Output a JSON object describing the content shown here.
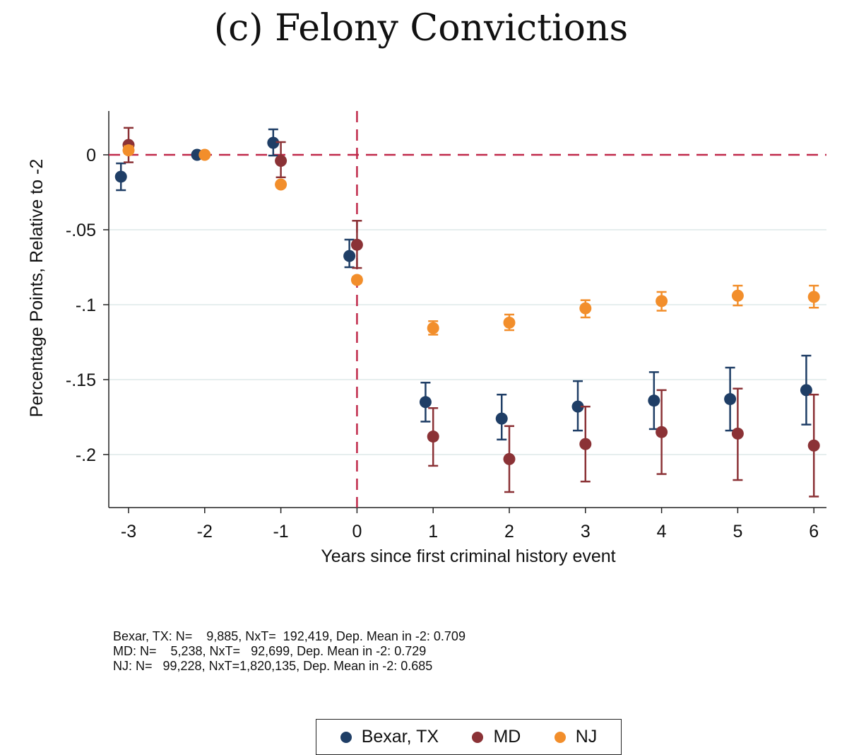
{
  "chart_data": {
    "type": "scatter",
    "title": "(c) Felony Convictions",
    "xlabel": "Years since first criminal history event",
    "ylabel": "Percentage Points, Relative to -2",
    "x": [
      -3,
      -2,
      -1,
      0,
      1,
      2,
      3,
      4,
      5,
      6
    ],
    "xticks": [
      "-3",
      "-2",
      "-1",
      "0",
      "1",
      "2",
      "3",
      "4",
      "5",
      "6"
    ],
    "yticks": [
      0,
      -0.05,
      -0.1,
      -0.15,
      -0.2
    ],
    "ytick_labels": [
      "0",
      "-.05",
      "-.1",
      "-.15",
      "-.2"
    ],
    "xlim": [
      -3.25,
      6.05
    ],
    "ylim": [
      -0.235,
      0.029
    ],
    "grid": "horizontal",
    "reference_lines": {
      "x": 0,
      "y": 0,
      "color": "#c0294a",
      "style": "dashed"
    },
    "legend_position": "bottom",
    "series": [
      {
        "name": "Bexar, TX",
        "color": "#1f3e66",
        "offset": -0.1,
        "values": [
          -0.0146,
          0,
          0.008,
          -0.0675,
          -0.165,
          -0.176,
          -0.168,
          -0.164,
          -0.163,
          -0.157
        ],
        "ci_low": [
          -0.0236,
          0,
          -0.0005,
          -0.075,
          -0.178,
          -0.19,
          -0.184,
          -0.183,
          -0.184,
          -0.18
        ],
        "ci_high": [
          -0.0057,
          0,
          0.017,
          -0.0566,
          -0.152,
          -0.16,
          -0.151,
          -0.145,
          -0.142,
          -0.134
        ]
      },
      {
        "name": "MD",
        "color": "#8b3236",
        "offset": 0,
        "values": [
          0.0066,
          null,
          -0.004,
          -0.06,
          -0.188,
          -0.203,
          -0.193,
          -0.185,
          -0.186,
          -0.194
        ],
        "ci_low": [
          -0.005,
          null,
          -0.015,
          -0.0755,
          -0.2075,
          -0.225,
          -0.218,
          -0.213,
          -0.217,
          -0.228
        ],
        "ci_high": [
          0.018,
          null,
          0.0085,
          -0.044,
          -0.169,
          -0.181,
          -0.168,
          -0.157,
          -0.156,
          -0.16
        ]
      },
      {
        "name": "NJ",
        "color": "#f28e2b",
        "offset": 0,
        "values": [
          0.003,
          0,
          -0.0198,
          -0.0835,
          -0.1156,
          -0.112,
          -0.1024,
          -0.0976,
          -0.094,
          -0.0948
        ],
        "ci_low": [
          0.001,
          0,
          -0.0217,
          -0.0855,
          -0.12,
          -0.117,
          -0.1085,
          -0.104,
          -0.1005,
          -0.102
        ],
        "ci_high": [
          0.0057,
          0,
          -0.018,
          -0.0814,
          -0.111,
          -0.1066,
          -0.097,
          -0.0915,
          -0.0873,
          -0.0873
        ]
      }
    ],
    "notes": [
      "Bexar, TX: N=    9,885, NxT=  192,419, Dep. Mean in -2: 0.709",
      "MD: N=    5,238, NxT=   92,699, Dep. Mean in -2: 0.729",
      "NJ: N=   99,228, NxT=1,820,135, Dep. Mean in -2: 0.685"
    ]
  }
}
